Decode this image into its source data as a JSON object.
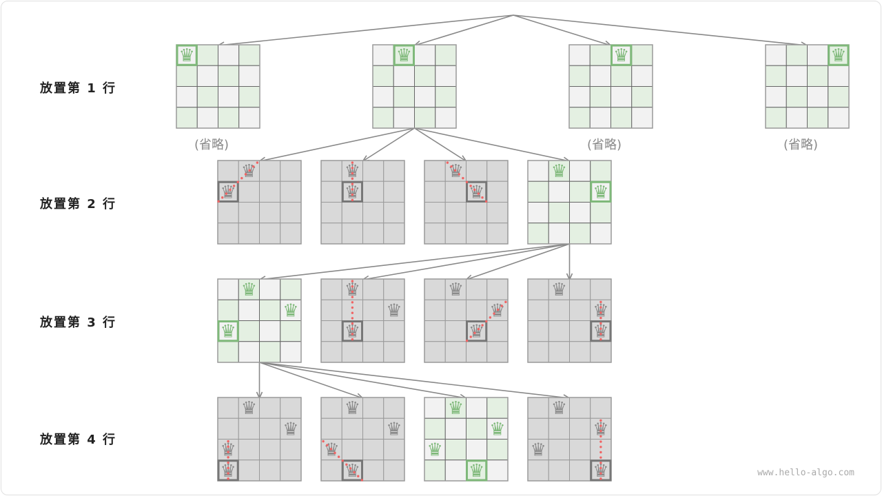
{
  "row_labels": [
    "放置第 1 行",
    "放置第 2 行",
    "放置第 3 行",
    "放置第 4 行"
  ],
  "omitted_label": "(省略)",
  "watermark": "www.hello-algo.com",
  "colors": {
    "valid_light": "#f2f2f2",
    "valid_green": "#e4f0e2",
    "invalid": "#d9d9d9",
    "queen_valid": "#7fb97a",
    "queen_invalid": "#8a8a8a",
    "conflict": "#f06464",
    "arrow": "#888888"
  },
  "queen_icon": "chess-queen",
  "levels": [
    {
      "boards": [
        {
          "valid": true,
          "queens": [
            [
              0,
              0
            ]
          ],
          "current": [
            0,
            0
          ],
          "omitted": true
        },
        {
          "valid": true,
          "queens": [
            [
              0,
              1
            ]
          ],
          "current": [
            0,
            1
          ],
          "omitted": false,
          "expanded": true
        },
        {
          "valid": true,
          "queens": [
            [
              0,
              2
            ]
          ],
          "current": [
            0,
            2
          ],
          "omitted": true
        },
        {
          "valid": true,
          "queens": [
            [
              0,
              3
            ]
          ],
          "current": [
            0,
            3
          ],
          "omitted": true
        }
      ]
    },
    {
      "boards": [
        {
          "valid": false,
          "queens": [
            [
              0,
              1
            ],
            [
              1,
              0
            ]
          ],
          "current": [
            1,
            0
          ],
          "conflict": [
            [
              0,
              1
            ],
            [
              1,
              0
            ]
          ]
        },
        {
          "valid": false,
          "queens": [
            [
              0,
              1
            ],
            [
              1,
              1
            ]
          ],
          "current": [
            1,
            1
          ],
          "conflict": [
            [
              0,
              1
            ],
            [
              1,
              1
            ]
          ]
        },
        {
          "valid": false,
          "queens": [
            [
              0,
              1
            ],
            [
              1,
              2
            ]
          ],
          "current": [
            1,
            2
          ],
          "conflict": [
            [
              0,
              1
            ],
            [
              1,
              2
            ]
          ]
        },
        {
          "valid": true,
          "queens": [
            [
              0,
              1
            ],
            [
              1,
              3
            ]
          ],
          "current": [
            1,
            3
          ],
          "expanded": true
        }
      ]
    },
    {
      "boards": [
        {
          "valid": true,
          "queens": [
            [
              0,
              1
            ],
            [
              1,
              3
            ],
            [
              2,
              0
            ]
          ],
          "current": [
            2,
            0
          ],
          "expanded": true
        },
        {
          "valid": false,
          "queens": [
            [
              0,
              1
            ],
            [
              1,
              3
            ],
            [
              2,
              1
            ]
          ],
          "current": [
            2,
            1
          ],
          "conflict": [
            [
              0,
              1
            ],
            [
              2,
              1
            ]
          ]
        },
        {
          "valid": false,
          "queens": [
            [
              0,
              1
            ],
            [
              1,
              3
            ],
            [
              2,
              2
            ]
          ],
          "current": [
            2,
            2
          ],
          "conflict": [
            [
              1,
              3
            ],
            [
              2,
              2
            ]
          ]
        },
        {
          "valid": false,
          "queens": [
            [
              0,
              1
            ],
            [
              1,
              3
            ],
            [
              2,
              3
            ]
          ],
          "current": [
            2,
            3
          ],
          "conflict": [
            [
              1,
              3
            ],
            [
              2,
              3
            ]
          ]
        }
      ]
    },
    {
      "boards": [
        {
          "valid": false,
          "queens": [
            [
              0,
              1
            ],
            [
              1,
              3
            ],
            [
              2,
              0
            ],
            [
              3,
              0
            ]
          ],
          "current": [
            3,
            0
          ],
          "conflict": [
            [
              2,
              0
            ],
            [
              3,
              0
            ]
          ]
        },
        {
          "valid": false,
          "queens": [
            [
              0,
              1
            ],
            [
              1,
              3
            ],
            [
              2,
              0
            ],
            [
              3,
              1
            ]
          ],
          "current": [
            3,
            1
          ],
          "conflict": [
            [
              2,
              0
            ],
            [
              3,
              1
            ]
          ]
        },
        {
          "valid": true,
          "queens": [
            [
              0,
              1
            ],
            [
              1,
              3
            ],
            [
              2,
              0
            ],
            [
              3,
              2
            ]
          ],
          "current": [
            3,
            2
          ]
        },
        {
          "valid": false,
          "queens": [
            [
              0,
              1
            ],
            [
              1,
              3
            ],
            [
              2,
              0
            ],
            [
              3,
              3
            ]
          ],
          "current": [
            3,
            3
          ],
          "conflict": [
            [
              1,
              3
            ],
            [
              3,
              3
            ]
          ]
        }
      ]
    }
  ]
}
